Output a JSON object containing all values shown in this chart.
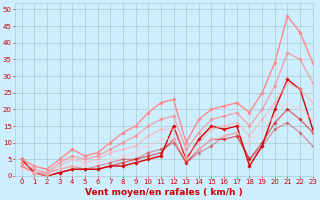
{
  "xlabel": "Vent moyen/en rafales ( km/h )",
  "ylabel": "",
  "xlim": [
    -0.5,
    23
  ],
  "ylim": [
    0,
    52
  ],
  "yticks": [
    0,
    5,
    10,
    15,
    20,
    25,
    30,
    35,
    40,
    45,
    50
  ],
  "xticks": [
    0,
    1,
    2,
    3,
    4,
    5,
    6,
    7,
    8,
    9,
    10,
    11,
    12,
    13,
    14,
    15,
    16,
    17,
    18,
    19,
    20,
    21,
    22,
    23
  ],
  "bg_color": "#cceeff",
  "grid_color": "#aacccc",
  "lines": [
    {
      "x": [
        0,
        1,
        2,
        3,
        4,
        5,
        6,
        7,
        8,
        9,
        10,
        11,
        12,
        13,
        14,
        15,
        16,
        17,
        18,
        19,
        20,
        21,
        22,
        23
      ],
      "y": [
        5,
        1,
        0,
        1,
        2,
        2,
        2,
        3,
        3,
        4,
        5,
        6,
        15,
        5,
        11,
        15,
        14,
        15,
        3,
        9,
        20,
        29,
        26,
        14
      ],
      "color": "#dd0000",
      "alpha": 1.0,
      "lw": 1.0
    },
    {
      "x": [
        0,
        1,
        2,
        3,
        4,
        5,
        6,
        7,
        8,
        9,
        10,
        11,
        12,
        13,
        14,
        15,
        16,
        17,
        18,
        19,
        20,
        21,
        22,
        23
      ],
      "y": [
        3,
        1,
        0,
        1,
        2,
        2,
        2,
        3,
        4,
        5,
        6,
        7,
        11,
        4,
        8,
        11,
        11,
        12,
        5,
        10,
        16,
        20,
        17,
        13
      ],
      "color": "#dd0000",
      "alpha": 0.55,
      "lw": 1.0
    },
    {
      "x": [
        0,
        1,
        2,
        3,
        4,
        5,
        6,
        7,
        8,
        9,
        10,
        11,
        12,
        13,
        14,
        15,
        16,
        17,
        18,
        19,
        20,
        21,
        22,
        23
      ],
      "y": [
        5,
        1,
        1,
        2,
        3,
        2,
        3,
        4,
        5,
        5,
        7,
        8,
        10,
        4,
        7,
        9,
        12,
        13,
        5,
        9,
        14,
        16,
        13,
        9
      ],
      "color": "#dd0000",
      "alpha": 0.35,
      "lw": 1.0
    },
    {
      "x": [
        0,
        1,
        2,
        3,
        4,
        5,
        6,
        7,
        8,
        9,
        10,
        11,
        12,
        13,
        14,
        15,
        16,
        17,
        18,
        19,
        20,
        21,
        22,
        23
      ],
      "y": [
        5,
        3,
        2,
        5,
        8,
        6,
        7,
        10,
        13,
        15,
        19,
        22,
        23,
        10,
        17,
        20,
        21,
        22,
        19,
        25,
        34,
        48,
        43,
        34
      ],
      "color": "#ff8888",
      "alpha": 1.0,
      "lw": 1.0
    },
    {
      "x": [
        0,
        1,
        2,
        3,
        4,
        5,
        6,
        7,
        8,
        9,
        10,
        11,
        12,
        13,
        14,
        15,
        16,
        17,
        18,
        19,
        20,
        21,
        22,
        23
      ],
      "y": [
        4,
        2,
        1,
        4,
        6,
        5,
        6,
        8,
        10,
        12,
        15,
        17,
        18,
        8,
        13,
        17,
        18,
        19,
        15,
        20,
        27,
        37,
        35,
        28
      ],
      "color": "#ff8888",
      "alpha": 0.7,
      "lw": 1.0
    },
    {
      "x": [
        0,
        1,
        2,
        3,
        4,
        5,
        6,
        7,
        8,
        9,
        10,
        11,
        12,
        13,
        14,
        15,
        16,
        17,
        18,
        19,
        20,
        21,
        22,
        23
      ],
      "y": [
        3,
        1,
        1,
        3,
        5,
        4,
        5,
        7,
        8,
        9,
        12,
        14,
        14,
        6,
        10,
        14,
        15,
        16,
        12,
        17,
        22,
        28,
        26,
        22
      ],
      "color": "#ffaaaa",
      "alpha": 0.6,
      "lw": 1.0
    },
    {
      "x": [
        0,
        1,
        2,
        3,
        4,
        5,
        6,
        7,
        8,
        9,
        10,
        11,
        12,
        13,
        14,
        15,
        16,
        17,
        18,
        19,
        20,
        21,
        22,
        23
      ],
      "y": [
        2,
        1,
        0,
        2,
        3,
        3,
        4,
        5,
        6,
        7,
        9,
        11,
        11,
        5,
        8,
        11,
        12,
        13,
        10,
        14,
        18,
        22,
        20,
        17
      ],
      "color": "#ffcccc",
      "alpha": 0.55,
      "lw": 1.0
    }
  ],
  "marker": "D",
  "markersize": 1.8,
  "tick_fontsize": 5,
  "xlabel_fontsize": 6.5,
  "xlabel_color": "#cc0000",
  "tick_color": "#cc0000"
}
